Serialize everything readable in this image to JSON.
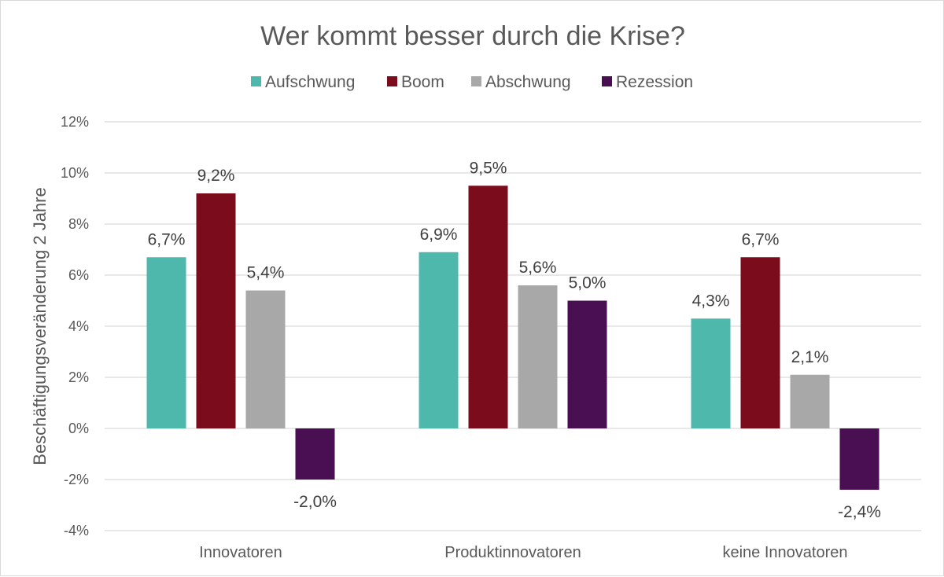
{
  "chart_data": {
    "type": "bar",
    "title": "Wer kommt besser durch die Krise?",
    "xlabel": "",
    "ylabel": "Beschäftigungsveränderung 2 Jahre",
    "categories": [
      "Innovatoren",
      "Produktinnovatoren",
      "keine Innovatoren"
    ],
    "series": [
      {
        "name": "Aufschwung",
        "color": "#4db8ab",
        "values": [
          6.7,
          6.9,
          4.3
        ],
        "labels": [
          "6,7%",
          "6,9%",
          "4,3%"
        ]
      },
      {
        "name": "Boom",
        "color": "#7b0c1b",
        "values": [
          9.2,
          9.5,
          6.7
        ],
        "labels": [
          "9,2%",
          "9,5%",
          "6,7%"
        ]
      },
      {
        "name": "Abschwung",
        "color": "#a8a8a8",
        "values": [
          5.4,
          5.6,
          2.1
        ],
        "labels": [
          "5,4%",
          "5,6%",
          "2,1%"
        ]
      },
      {
        "name": "Rezession",
        "color": "#4a0f52",
        "values": [
          -2.0,
          5.0,
          -2.4
        ],
        "labels": [
          "-2,0%",
          "5,0%",
          "-2,4%"
        ]
      }
    ],
    "ylim": [
      -4,
      12
    ],
    "yticks": [
      -4,
      -2,
      0,
      2,
      4,
      6,
      8,
      10,
      12
    ],
    "ytick_labels": [
      "-4%",
      "-2%",
      "0%",
      "2%",
      "4%",
      "6%",
      "8%",
      "10%",
      "12%"
    ],
    "grid": true,
    "legend_position": "top"
  }
}
